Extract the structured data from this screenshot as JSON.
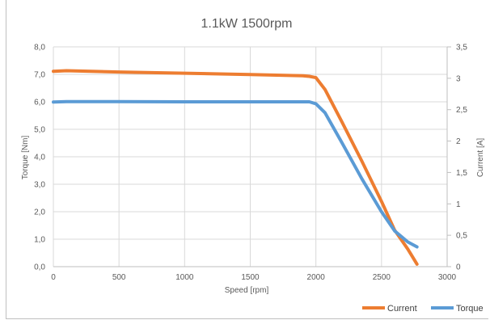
{
  "chart_data": {
    "type": "line",
    "title": "1.1kW 1500rpm",
    "xlabel": "Speed [rpm]",
    "ylabel": "Torque [Nm]",
    "y2label": "Current [A]",
    "xlim": [
      0,
      3000
    ],
    "ylim": [
      0,
      8
    ],
    "y2lim": [
      0,
      3.5
    ],
    "x_ticks": [
      "0",
      "500",
      "1000",
      "1500",
      "2000",
      "2500",
      "3000"
    ],
    "y_ticks": [
      "0,0",
      "1,0",
      "2,0",
      "3,0",
      "4,0",
      "5,0",
      "6,0",
      "7,0",
      "8,0"
    ],
    "y2_ticks": [
      "0",
      "0,5",
      "1",
      "1,5",
      "2",
      "2,5",
      "3",
      "3,5"
    ],
    "grid": true,
    "legend_position": "bottom-right",
    "series": [
      {
        "name": "Current",
        "axis": "right",
        "color": "#ed7d31",
        "x": [
          0,
          100,
          500,
          1000,
          1500,
          1900,
          1950,
          2000,
          2070,
          2200,
          2350,
          2500,
          2600,
          2700,
          2770
        ],
        "y": [
          3.11,
          3.12,
          3.1,
          3.08,
          3.06,
          3.04,
          3.03,
          3.01,
          2.82,
          2.3,
          1.68,
          1.04,
          0.58,
          0.28,
          0.04
        ]
      },
      {
        "name": "Torque",
        "axis": "left",
        "color": "#5b9bd5",
        "x": [
          0,
          100,
          500,
          1000,
          1500,
          1900,
          1950,
          2000,
          2070,
          2200,
          2350,
          2500,
          2600,
          2700,
          2770
        ],
        "y": [
          5.99,
          6.01,
          6.01,
          6.0,
          6.0,
          6.0,
          6.0,
          5.93,
          5.6,
          4.5,
          3.2,
          2.0,
          1.3,
          0.9,
          0.72
        ]
      }
    ]
  }
}
